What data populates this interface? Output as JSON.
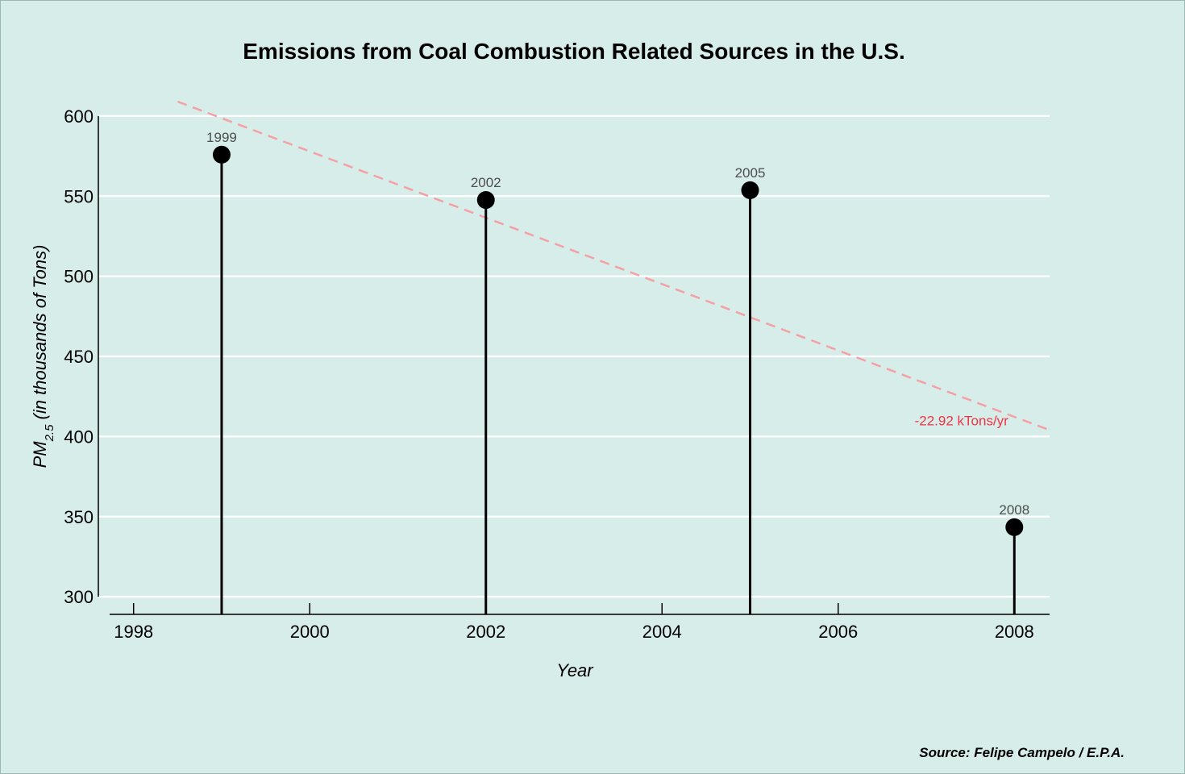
{
  "chart_data": {
    "type": "lollipop",
    "title": "Emissions from Coal Combustion Related Sources in the U.S.",
    "xlabel": "Year",
    "ylabel": {
      "main": "PM",
      "subscript": "2.5",
      "rest": " (in thousands of Tons)"
    },
    "caption": "Source: Felipe Campelo / E.P.A.",
    "x": [
      1999,
      2002,
      2005,
      2008
    ],
    "values": [
      575.9,
      547.6,
      553.7,
      343.4
    ],
    "point_labels": [
      "1999",
      "2002",
      "2005",
      "2008"
    ],
    "xlim": [
      1997.6,
      2008.4
    ],
    "ylim": [
      289,
      608
    ],
    "x_ticks": [
      1998,
      2000,
      2002,
      2004,
      2006,
      2008
    ],
    "y_ticks": [
      300,
      350,
      400,
      450,
      500,
      550,
      600
    ],
    "grid": "horizontal",
    "trend": {
      "x_start": 1998.5,
      "x_end": 2008.4,
      "y_start": 609,
      "y_end": 404,
      "label": "-22.92 kTons/yr",
      "label_x": 2007.4,
      "label_y": 410,
      "color": "#f4a0a5",
      "label_color": "#ee3344"
    },
    "colors": {
      "background": "#d7edea",
      "grid": "#ffffff",
      "stems": "#000000",
      "points": "#000000",
      "point_labels": "#4d4d4d"
    }
  }
}
